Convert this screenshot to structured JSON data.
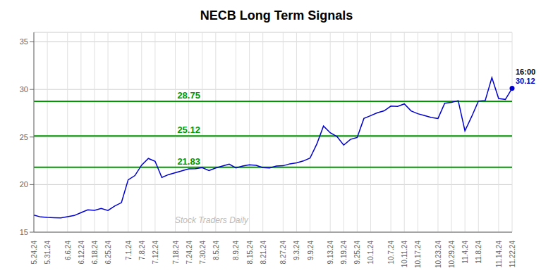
{
  "chart_data": {
    "type": "line",
    "title": "NECB Long Term Signals",
    "categories": [
      "5.24.24",
      null,
      "5.31.24",
      null,
      null,
      "6.6.24",
      null,
      "6.12.24",
      null,
      "6.18.24",
      null,
      "6.25.24",
      null,
      null,
      "7.1.24",
      null,
      "7.8.24",
      null,
      "7.12.24",
      null,
      null,
      "7.18.24",
      null,
      "7.24.24",
      null,
      "7.30.24",
      null,
      "8.5.24",
      null,
      null,
      "8.9.24",
      null,
      "8.15.24",
      null,
      "8.21.24",
      null,
      null,
      "8.27.24",
      null,
      "9.3.24",
      null,
      "9.9.24",
      null,
      null,
      "9.13.24",
      null,
      "9.19.24",
      null,
      "9.25.24",
      null,
      "10.1.24",
      null,
      null,
      "10.7.24",
      null,
      "10.11.24",
      null,
      "10.17.24",
      null,
      null,
      "10.23.24",
      null,
      "10.29.24",
      null,
      "11.4.24",
      null,
      "11.8.24",
      null,
      null,
      "11.14.24",
      null,
      "11.22.24"
    ],
    "values": [
      16.8,
      16.6,
      16.55,
      16.52,
      16.5,
      16.62,
      16.75,
      17.05,
      17.35,
      17.3,
      17.5,
      17.28,
      17.75,
      18.1,
      20.5,
      20.95,
      22.05,
      22.75,
      22.45,
      20.75,
      21.05,
      21.25,
      21.45,
      21.65,
      21.68,
      21.78,
      21.48,
      21.75,
      21.95,
      22.15,
      21.75,
      21.95,
      22.08,
      22.02,
      21.78,
      21.75,
      21.95,
      21.98,
      22.18,
      22.28,
      22.48,
      22.78,
      24.25,
      26.15,
      25.45,
      25.05,
      24.15,
      24.75,
      24.95,
      26.95,
      27.25,
      27.55,
      27.75,
      28.25,
      28.22,
      28.48,
      27.75,
      27.45,
      27.25,
      27.05,
      26.95,
      28.55,
      28.65,
      28.82,
      25.65,
      27.15,
      28.78,
      28.82,
      31.25,
      29.05,
      28.95,
      30.12
    ],
    "color": "#0000cc",
    "ylim": [
      15,
      36
    ],
    "yticks": [
      15,
      20,
      25,
      30,
      35
    ],
    "grid": true,
    "reference_lines": [
      {
        "y": 21.83,
        "label": "21.83",
        "color": "#009900"
      },
      {
        "y": 25.12,
        "label": "25.12",
        "color": "#009900"
      },
      {
        "y": 28.75,
        "label": "28.75",
        "color": "#009900"
      }
    ],
    "end_labels": [
      "16:00",
      "30.12"
    ],
    "watermark": "Stock Traders Daily"
  }
}
